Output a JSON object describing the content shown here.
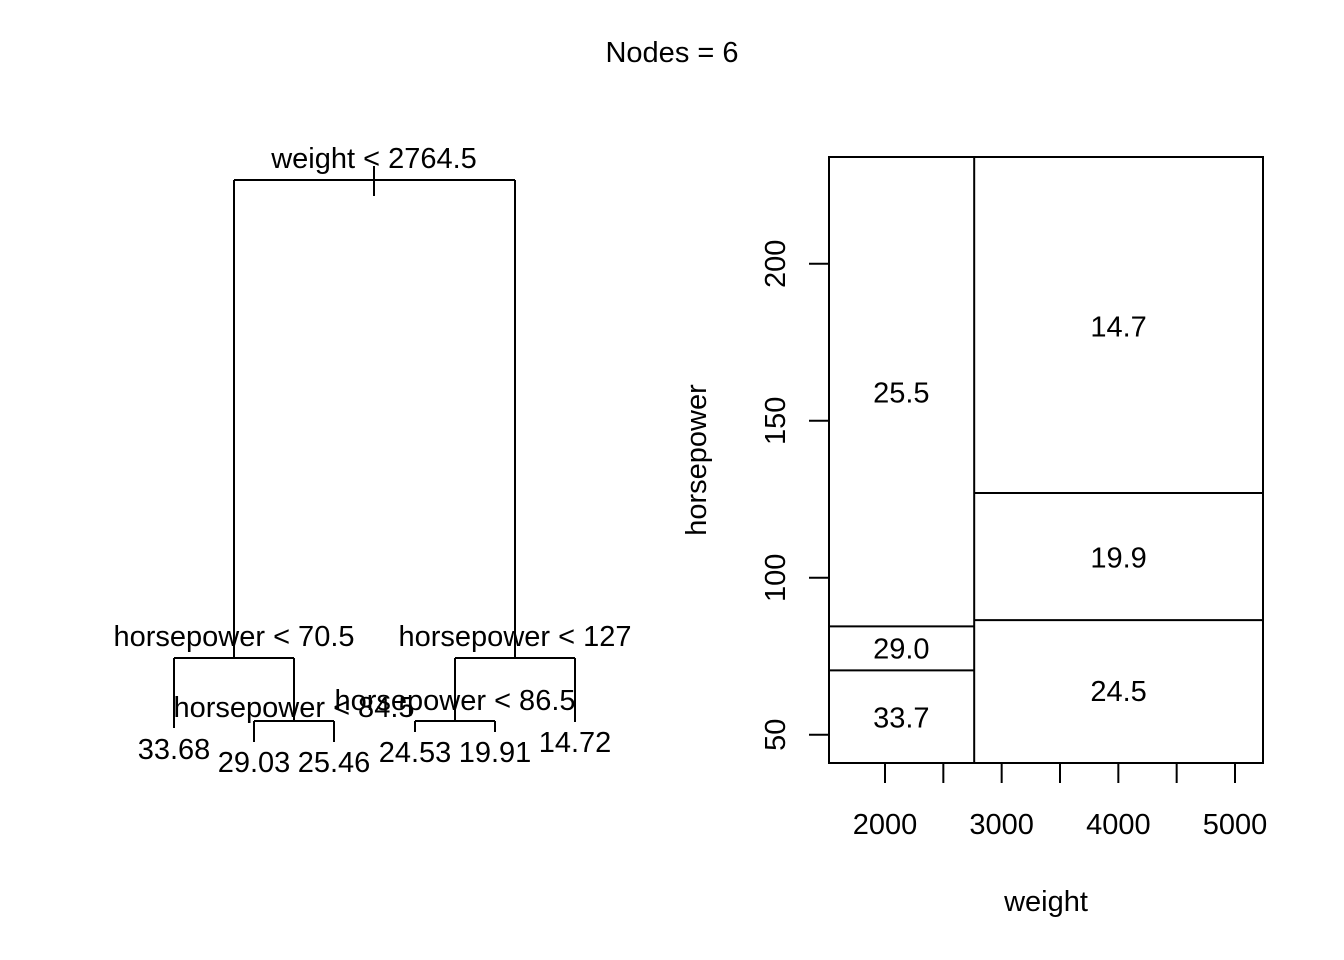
{
  "title": "Nodes = 6",
  "chart_data": [
    {
      "type": "tree",
      "splits": [
        {
          "label": "weight < 2764.5"
        },
        {
          "label": "horsepower < 70.5"
        },
        {
          "label": "horsepower < 127"
        },
        {
          "label": "horsepower < 84.5"
        },
        {
          "label": "horsepower < 86.5"
        }
      ],
      "leaves": [
        {
          "value": "33.68"
        },
        {
          "value": "29.03"
        },
        {
          "value": "25.46"
        },
        {
          "value": "24.53"
        },
        {
          "value": "19.91"
        },
        {
          "value": "14.72"
        }
      ]
    },
    {
      "type": "partition",
      "xlabel": "weight",
      "ylabel": "horsepower",
      "xlim": [
        1520,
        5240
      ],
      "ylim": [
        41,
        234
      ],
      "xticks": [
        2000,
        2500,
        3000,
        3500,
        4000,
        4500,
        5000
      ],
      "xtick_labels": [
        "2000",
        "3000",
        "4000",
        "5000"
      ],
      "yticks": [
        50,
        100,
        150,
        200
      ],
      "xsplit": 2764.5,
      "left_splits": [
        70.5,
        84.5
      ],
      "right_splits": [
        86.5,
        127
      ],
      "regions": [
        {
          "value": "33.7",
          "x": 2140,
          "y": 55.5
        },
        {
          "value": "29.0",
          "x": 2140,
          "y": 77.5
        },
        {
          "value": "25.5",
          "x": 2140,
          "y": 159
        },
        {
          "value": "24.5",
          "x": 4002,
          "y": 64
        },
        {
          "value": "19.9",
          "x": 4002,
          "y": 106.5
        },
        {
          "value": "14.7",
          "x": 4002,
          "y": 180
        }
      ]
    }
  ]
}
